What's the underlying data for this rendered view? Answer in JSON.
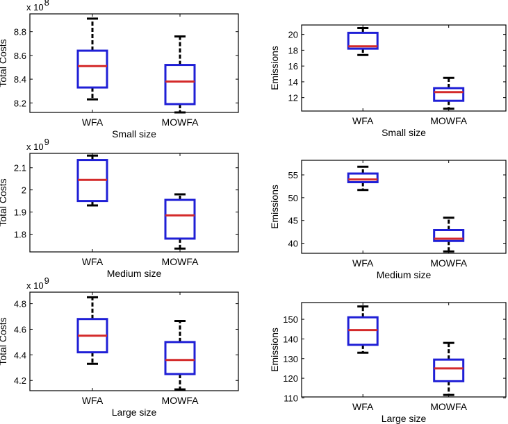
{
  "colors": {
    "box": "#1f1fd6",
    "median": "#d42a2a",
    "whisker": "#000000"
  },
  "chart_data": [
    {
      "type": "box",
      "title": "",
      "xlabel": "Small size",
      "ylabel": "Total Costs",
      "multiplier_base": "x 10",
      "multiplier_exp": "8",
      "categories": [
        "WFA",
        "MOWFA"
      ],
      "ylim": [
        8.12,
        8.95
      ],
      "yticks": [
        8.2,
        8.4,
        8.6,
        8.8
      ],
      "ytick_labels": [
        "8.2",
        "8.4",
        "8.6",
        "8.8"
      ],
      "boxes": [
        {
          "min": 8.23,
          "q1": 8.33,
          "median": 8.51,
          "q3": 8.64,
          "max": 8.91
        },
        {
          "min": 8.12,
          "q1": 8.19,
          "median": 8.38,
          "q3": 8.52,
          "max": 8.76
        }
      ]
    },
    {
      "type": "box",
      "title": "",
      "xlabel": "Small size",
      "ylabel": "Emissions",
      "multiplier_base": "",
      "multiplier_exp": "",
      "categories": [
        "WFA",
        "MOWFA"
      ],
      "ylim": [
        10.3,
        21.2
      ],
      "yticks": [
        12,
        14,
        16,
        18,
        20
      ],
      "ytick_labels": [
        "12",
        "14",
        "16",
        "18",
        "20"
      ],
      "boxes": [
        {
          "min": 17.4,
          "q1": 18.2,
          "median": 18.5,
          "q3": 20.2,
          "max": 20.8
        },
        {
          "min": 10.6,
          "q1": 11.6,
          "median": 12.7,
          "q3": 13.2,
          "max": 14.5
        }
      ]
    },
    {
      "type": "box",
      "title": "",
      "xlabel": "Medium size",
      "ylabel": "Total Costs",
      "multiplier_base": "x 10",
      "multiplier_exp": "9",
      "categories": [
        "WFA",
        "MOWFA"
      ],
      "ylim": [
        1.72,
        2.165
      ],
      "yticks": [
        1.8,
        1.9,
        2.0,
        2.1
      ],
      "ytick_labels": [
        "1.8",
        "1.9",
        "2",
        "2.1"
      ],
      "boxes": [
        {
          "min": 1.93,
          "q1": 1.95,
          "median": 2.045,
          "q3": 2.135,
          "max": 2.155
        },
        {
          "min": 1.735,
          "q1": 1.78,
          "median": 1.885,
          "q3": 1.955,
          "max": 1.98
        }
      ]
    },
    {
      "type": "box",
      "title": "",
      "xlabel": "Medium size",
      "ylabel": "Emissions",
      "multiplier_base": "",
      "multiplier_exp": "",
      "categories": [
        "WFA",
        "MOWFA"
      ],
      "ylim": [
        37.8,
        58.2
      ],
      "yticks": [
        40,
        45,
        50,
        55
      ],
      "ytick_labels": [
        "40",
        "45",
        "50",
        "55"
      ],
      "boxes": [
        {
          "min": 51.7,
          "q1": 53.4,
          "median": 54.0,
          "q3": 55.3,
          "max": 56.8
        },
        {
          "min": 38.2,
          "q1": 40.5,
          "median": 41.0,
          "q3": 42.9,
          "max": 45.6
        }
      ]
    },
    {
      "type": "box",
      "title": "",
      "xlabel": "Large size",
      "ylabel": "Total Costs",
      "multiplier_base": "x 10",
      "multiplier_exp": "9",
      "categories": [
        "WFA",
        "MOWFA"
      ],
      "ylim": [
        4.12,
        4.89
      ],
      "yticks": [
        4.2,
        4.4,
        4.6,
        4.8
      ],
      "ytick_labels": [
        "4.2",
        "4.4",
        "4.6",
        "4.8"
      ],
      "boxes": [
        {
          "min": 4.33,
          "q1": 4.42,
          "median": 4.55,
          "q3": 4.68,
          "max": 4.85
        },
        {
          "min": 4.13,
          "q1": 4.25,
          "median": 4.36,
          "q3": 4.5,
          "max": 4.665
        }
      ]
    },
    {
      "type": "box",
      "title": "",
      "xlabel": "Large size",
      "ylabel": "Emissions",
      "multiplier_base": "",
      "multiplier_exp": "",
      "categories": [
        "WFA",
        "MOWFA"
      ],
      "ylim": [
        110.5,
        158.5
      ],
      "yticks": [
        110,
        120,
        130,
        140,
        150
      ],
      "ytick_labels": [
        "110",
        "120",
        "130",
        "140",
        "150"
      ],
      "boxes": [
        {
          "min": 133.0,
          "q1": 137.0,
          "median": 144.5,
          "q3": 151.0,
          "max": 156.5
        },
        {
          "min": 111.5,
          "q1": 118.5,
          "median": 125.0,
          "q3": 129.5,
          "max": 138.0
        }
      ]
    }
  ]
}
